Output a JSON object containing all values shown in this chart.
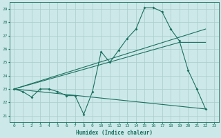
{
  "xlabel": "Humidex (Indice chaleur)",
  "xlim": [
    -0.5,
    23.5
  ],
  "ylim": [
    20.5,
    29.5
  ],
  "xticks": [
    0,
    1,
    2,
    3,
    4,
    5,
    6,
    7,
    8,
    9,
    10,
    11,
    12,
    13,
    14,
    15,
    16,
    17,
    18,
    19,
    20,
    21,
    22,
    23
  ],
  "yticks": [
    21,
    22,
    23,
    24,
    25,
    26,
    27,
    28,
    29
  ],
  "bg_color": "#cce8e8",
  "grid_color": "#aacccc",
  "line_color": "#1a7060",
  "main_line": {
    "x": [
      0,
      1,
      2,
      3,
      4,
      5,
      6,
      7,
      8,
      9,
      10,
      11,
      12,
      13,
      14,
      15,
      16,
      17,
      18,
      19,
      20,
      21,
      22
    ],
    "y": [
      23.0,
      22.8,
      22.4,
      23.0,
      23.0,
      22.8,
      22.5,
      22.5,
      21.1,
      22.8,
      25.8,
      25.0,
      25.9,
      26.8,
      27.5,
      29.1,
      29.1,
      28.8,
      27.5,
      26.6,
      24.4,
      23.0,
      21.5
    ]
  },
  "straight_line1": {
    "x": [
      0,
      22
    ],
    "y": [
      23.0,
      27.5
    ]
  },
  "straight_line2": {
    "x": [
      0,
      19,
      22
    ],
    "y": [
      23.0,
      26.5,
      26.5
    ]
  },
  "straight_line3": {
    "x": [
      0,
      22
    ],
    "y": [
      23.0,
      21.5
    ]
  },
  "figsize": [
    3.2,
    2.0
  ],
  "dpi": 100
}
